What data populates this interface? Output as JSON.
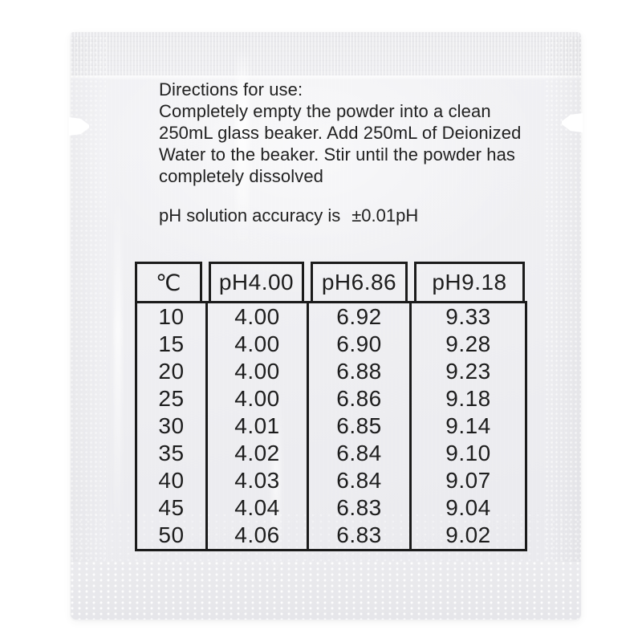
{
  "packet": {
    "directions": {
      "title": "Directions for use:",
      "lines": [
        "Completely empty the powder into a clean",
        "250mL glass beaker. Add 250mL of Deionized",
        "Water to the beaker. Stir until the powder has",
        "completely dissolved"
      ]
    },
    "accuracy": {
      "prefix": "pH solution accuracy is",
      "value": "±0.01pH"
    },
    "table": {
      "headers": [
        "℃",
        "pH4.00",
        "pH6.86",
        "pH9.18"
      ],
      "rows": [
        [
          "10",
          "4.00",
          "6.92",
          "9.33"
        ],
        [
          "15",
          "4.00",
          "6.90",
          "9.28"
        ],
        [
          "20",
          "4.00",
          "6.88",
          "9.23"
        ],
        [
          "25",
          "4.00",
          "6.86",
          "9.18"
        ],
        [
          "30",
          "4.01",
          "6.85",
          "9.14"
        ],
        [
          "35",
          "4.02",
          "6.84",
          "9.10"
        ],
        [
          "40",
          "4.03",
          "6.84",
          "9.07"
        ],
        [
          "45",
          "4.04",
          "6.83",
          "9.04"
        ],
        [
          "50",
          "4.06",
          "6.83",
          "9.02"
        ]
      ]
    },
    "colors": {
      "background": "#ffffff",
      "packet_base": "#efeff2",
      "ink": "#212121",
      "table_border": "#1b1b1b"
    }
  }
}
